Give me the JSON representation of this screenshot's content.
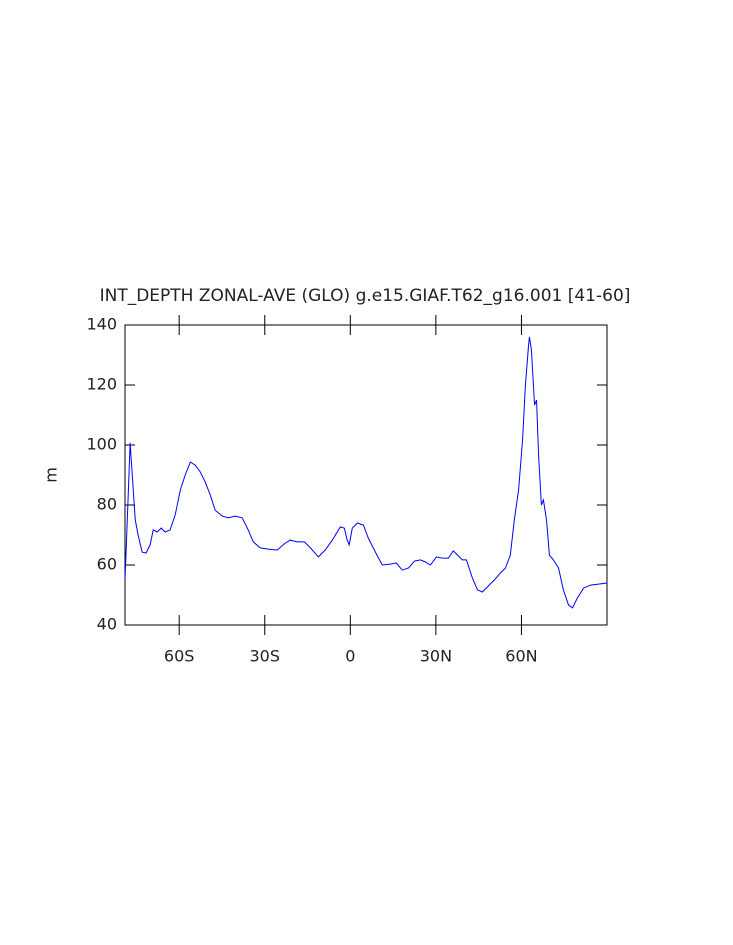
{
  "chart_data": {
    "type": "line",
    "title": "INT_DEPTH ZONAL-AVE (GLO) g.e15.GIAF.T62_g16.001 [41-60]",
    "y_label": "m",
    "xlim": [
      -79,
      90
    ],
    "ylim": [
      40,
      140
    ],
    "xticks": [
      {
        "value": -60,
        "label": "60S"
      },
      {
        "value": -30,
        "label": "30S"
      },
      0,
      {
        "value": 30,
        "label": "30N"
      },
      {
        "value": 60,
        "label": "60N"
      }
    ],
    "yticks": [
      40,
      60,
      80,
      100,
      120,
      140
    ],
    "series": [
      {
        "color": "#0000ff",
        "x": [
          -79,
          -78.2,
          -77.2,
          -76.1,
          -75.4,
          -74.4,
          -73,
          -71.6,
          -70.2,
          -69.1,
          -67.7,
          -66.3,
          -64.9,
          -63.2,
          -61.4,
          -59.6,
          -57.9,
          -56.1,
          -54.4,
          -52.6,
          -50.9,
          -49.1,
          -47.4,
          -44.9,
          -42.8,
          -40.4,
          -37.9,
          -35.8,
          -34,
          -31.6,
          -28.8,
          -25.6,
          -23.2,
          -21.1,
          -18.6,
          -16.1,
          -14,
          -11.2,
          -8.8,
          -6.3,
          -3.5,
          -2.1,
          -1.1,
          -0.4,
          0.7,
          2.5,
          4.6,
          6.3,
          8.8,
          11.2,
          14,
          16.1,
          18.2,
          20.4,
          22.5,
          24.6,
          26.3,
          28.1,
          30.2,
          32.3,
          34.4,
          36.1,
          37.9,
          39.3,
          40.7,
          42.8,
          44.6,
          46.3,
          48.1,
          49.1,
          50.5,
          52.6,
          54.4,
          56.1,
          57.5,
          59,
          60.4,
          61.4,
          62.5,
          62.8,
          63.5,
          64.6,
          65.3,
          66,
          67,
          67.7,
          68.8,
          69.8,
          71.2,
          73,
          74.7,
          76.5,
          77.9,
          79.6,
          81.8,
          84.2,
          87.7,
          90
        ],
        "values": [
          55,
          75,
          100.7,
          85,
          75,
          70,
          64.3,
          64,
          66.7,
          71.7,
          71,
          72.3,
          71,
          71.7,
          76.7,
          85,
          90,
          94.3,
          93.3,
          91,
          87.7,
          83.3,
          78.3,
          76.3,
          75.7,
          76.3,
          75.7,
          71.7,
          67.7,
          65.7,
          65.3,
          65,
          67,
          68.3,
          67.7,
          67.7,
          65.7,
          62.7,
          65,
          68.3,
          72.7,
          72.3,
          68.3,
          66.7,
          72.3,
          74,
          73.3,
          69,
          64.3,
          60,
          60.3,
          60.7,
          58.3,
          59,
          61.3,
          61.7,
          61,
          60,
          62.7,
          62.3,
          62.3,
          64.7,
          63,
          61.7,
          61.7,
          55.7,
          51.7,
          51,
          52.7,
          53.7,
          55,
          57.3,
          59,
          63.3,
          75,
          85,
          101.7,
          120,
          133.3,
          136,
          131.7,
          113.3,
          115,
          96.7,
          80,
          81.7,
          75,
          63.3,
          61.7,
          59,
          51.7,
          46.7,
          45.7,
          49,
          52.3,
          53.3,
          53.7,
          54
        ]
      }
    ]
  }
}
